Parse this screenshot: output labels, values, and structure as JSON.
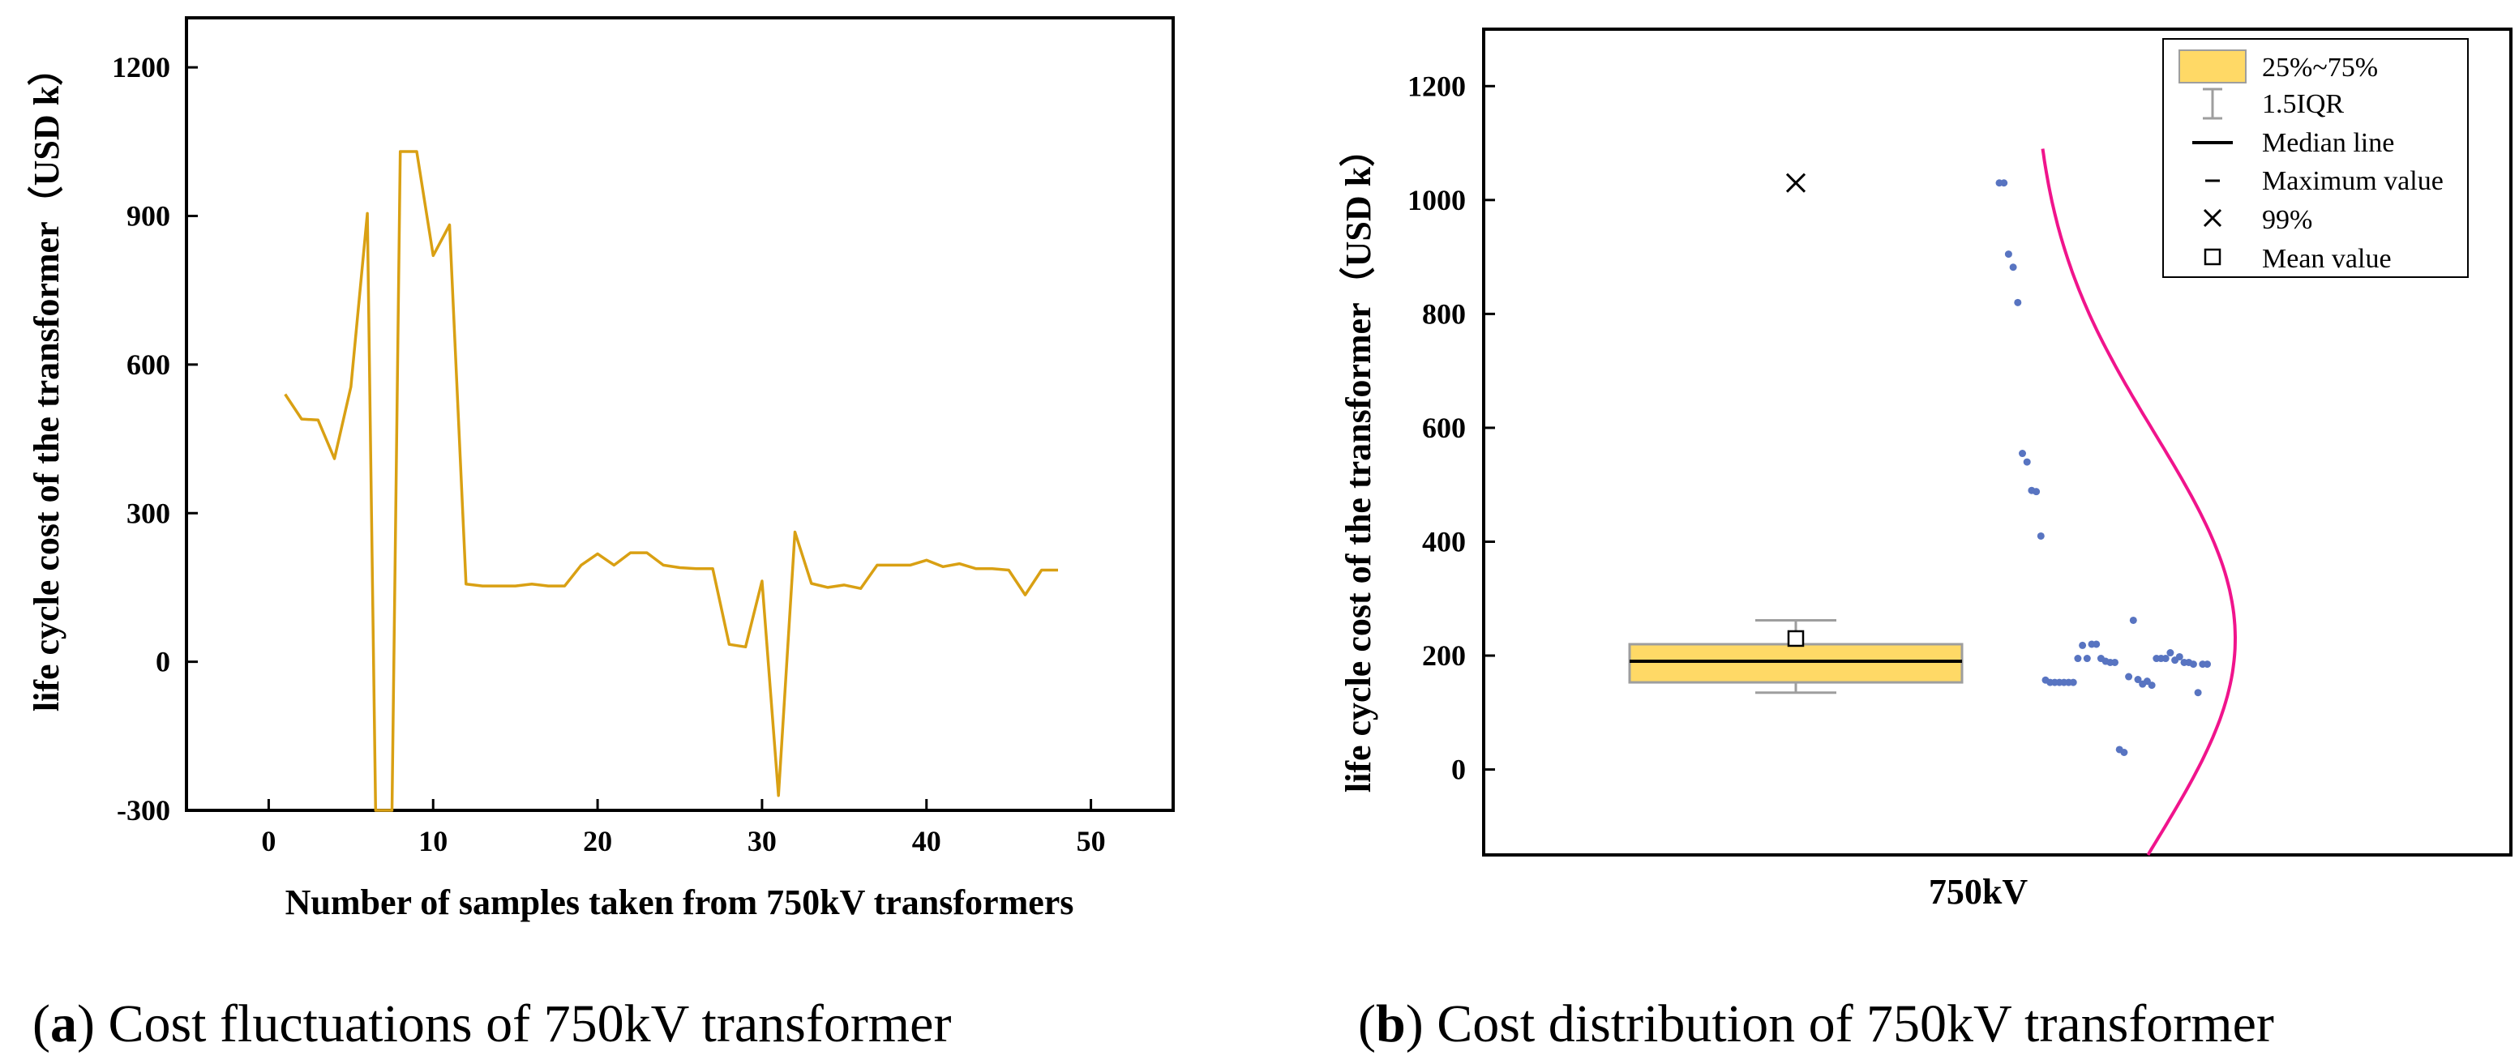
{
  "colors": {
    "line": "#D9A013",
    "box_fill": "#FFD966",
    "box_stroke": "#9E9E9E",
    "points": "#5874C1",
    "curve": "#F0148C",
    "axis": "#000000"
  },
  "captions": {
    "a_letter": "a",
    "a_text": " Cost fluctuations of 750kV transformer",
    "b_letter": "b",
    "b_text": " Cost distribution of 750kV transformer"
  },
  "chart_data": [
    {
      "type": "line",
      "xlabel": "Number of samples taken from 750kV transformers",
      "ylabel": "life cycle cost of the transformer（USD k）",
      "xlim": [
        -5,
        55
      ],
      "ylim": [
        -300,
        1300
      ],
      "xticks": [
        "0",
        "10",
        "20",
        "30",
        "40",
        "50"
      ],
      "xtick_values": [
        0,
        10,
        20,
        30,
        40,
        50
      ],
      "yticks": [
        "-300",
        "0",
        "300",
        "600",
        "900",
        "1200"
      ],
      "ytick_values": [
        -300,
        0,
        300,
        600,
        900,
        1200
      ],
      "grid": false,
      "series": [
        {
          "x": [
            1,
            2,
            3,
            4,
            5,
            6,
            6.5,
            7.5,
            8,
            9,
            10,
            11,
            12,
            13,
            14,
            15,
            16,
            17,
            18,
            19,
            20,
            21,
            22,
            23,
            24,
            25,
            26,
            27,
            28,
            29,
            30,
            31,
            32,
            33,
            34,
            35,
            36,
            37,
            38,
            39,
            40,
            41,
            42,
            43,
            44,
            45,
            46,
            47,
            48
          ],
          "y": [
            540,
            490,
            488,
            410,
            555,
            905,
            -300,
            -300,
            1030,
            1030,
            820,
            882,
            157,
            153,
            153,
            153,
            157,
            153,
            153,
            195,
            218,
            195,
            220,
            220,
            195,
            190,
            188,
            188,
            35,
            30,
            163,
            -270,
            262,
            158,
            150,
            155,
            148,
            195,
            195,
            195,
            205,
            192,
            198,
            188,
            188,
            185,
            135,
            185,
            185
          ]
        }
      ]
    },
    {
      "type": "box",
      "xlabel": "750kV",
      "ylabel": "life cycle cost of the transformer（USD k）",
      "ylim": [
        -150,
        1300
      ],
      "yticks": [
        "0",
        "200",
        "400",
        "600",
        "800",
        "1000",
        "1200"
      ],
      "ytick_values": [
        0,
        200,
        400,
        600,
        800,
        1000,
        1200
      ],
      "box": {
        "q1": 153,
        "q3": 220,
        "median": 190,
        "whisker_low": 135,
        "whisker_high": 262,
        "mean": 230,
        "p99": 1030
      },
      "points": [
        1030,
        1030,
        905,
        882,
        820,
        555,
        540,
        490,
        488,
        410,
        157,
        153,
        153,
        153,
        153,
        153,
        153,
        195,
        218,
        195,
        220,
        220,
        195,
        190,
        188,
        188,
        35,
        30,
        163,
        262,
        158,
        150,
        155,
        148,
        195,
        195,
        195,
        205,
        192,
        198,
        188,
        188,
        185,
        135,
        185,
        185
      ],
      "normal_curve": {
        "mean": 230,
        "sd": 360,
        "range": [
          -150,
          1090
        ]
      },
      "legend": {
        "position": "top-right",
        "items": [
          "25%~75%",
          "1.5IQR",
          "Median line",
          "Maximum value",
          "99%",
          "Mean value"
        ]
      }
    }
  ]
}
